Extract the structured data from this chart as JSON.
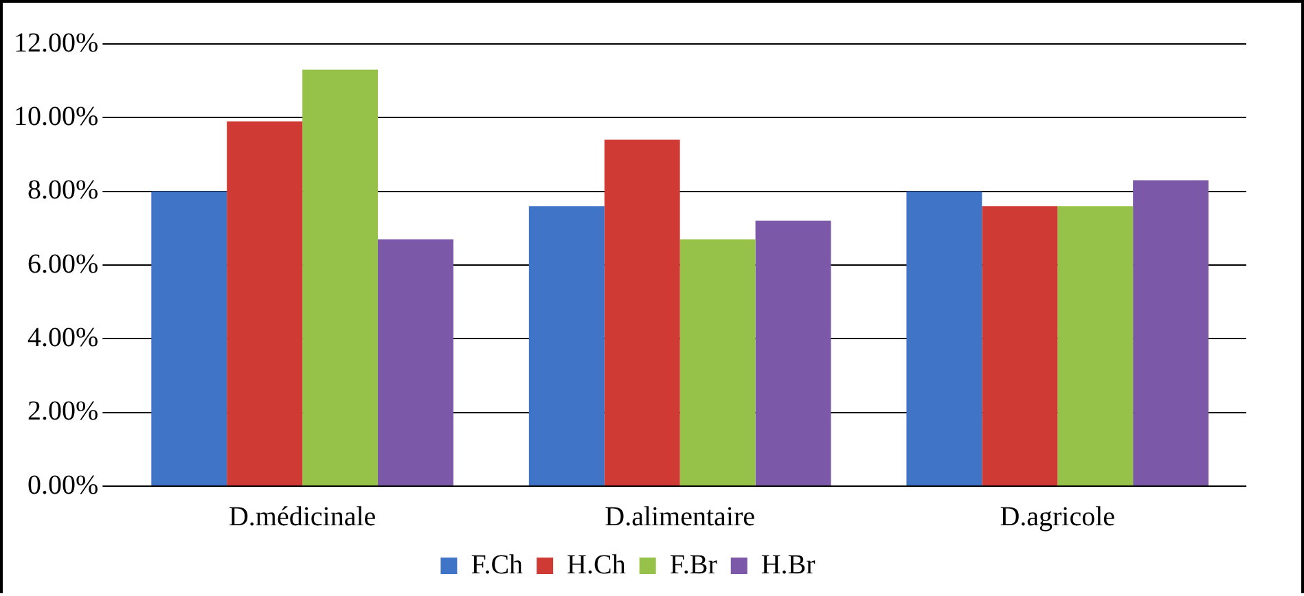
{
  "chart_data": {
    "type": "bar",
    "categories": [
      "D.médicinale",
      "D.alimentaire",
      "D.agricole"
    ],
    "series": [
      {
        "name": "F.Ch",
        "color": "#3f74c6",
        "values": [
          8.0,
          7.6,
          8.0
        ]
      },
      {
        "name": "H.Ch",
        "color": "#d03a35",
        "values": [
          9.9,
          9.4,
          7.6
        ]
      },
      {
        "name": "F.Br",
        "color": "#97c24a",
        "values": [
          11.3,
          6.7,
          7.6
        ]
      },
      {
        "name": "H.Br",
        "color": "#7b58a8",
        "values": [
          6.7,
          7.2,
          8.3
        ]
      }
    ],
    "ylim": [
      0,
      12
    ],
    "yticks": [
      {
        "value": 0,
        "label": "0.00%"
      },
      {
        "value": 2,
        "label": "2.00%"
      },
      {
        "value": 4,
        "label": "4.00%"
      },
      {
        "value": 6,
        "label": "6.00%"
      },
      {
        "value": 8,
        "label": "8.00%"
      },
      {
        "value": 10,
        "label": "10.00%"
      },
      {
        "value": 12,
        "label": "12.00%"
      }
    ],
    "grid": "y",
    "legend": "bottom"
  }
}
